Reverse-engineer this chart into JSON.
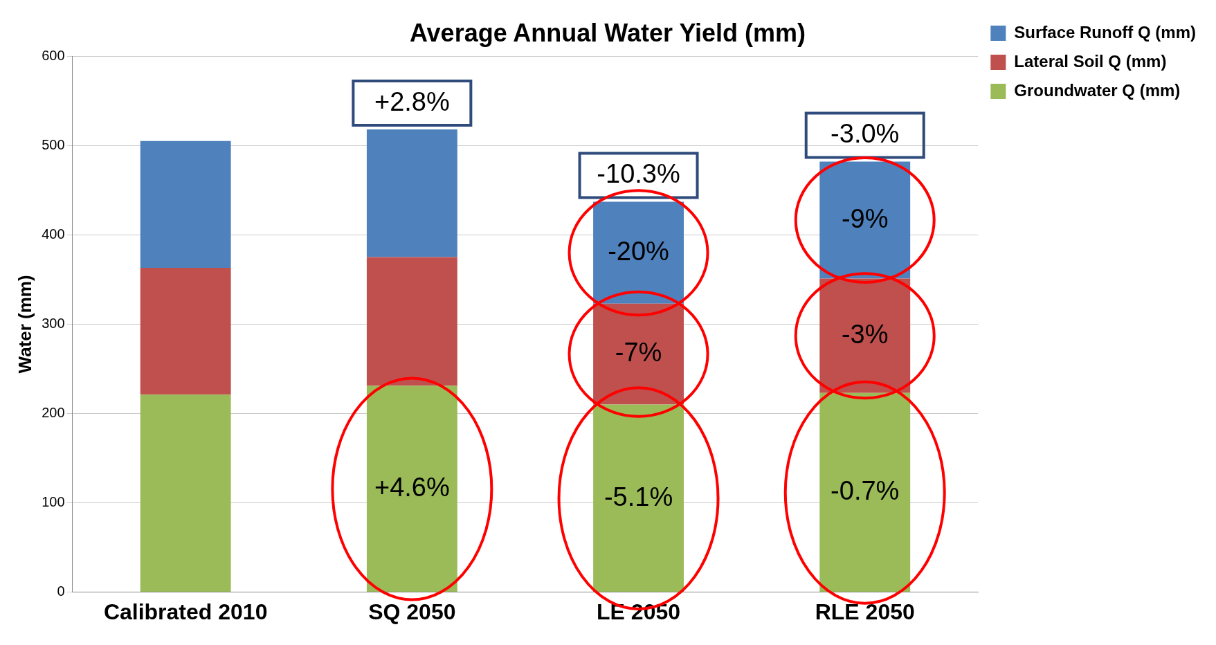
{
  "chart_data": {
    "type": "bar",
    "stacked": true,
    "title": "Average Annual Water Yield (mm)",
    "ylabel": "Water (mm)",
    "categories": [
      "Calibrated 2010",
      "SQ 2050",
      "LE 2050",
      "RLE 2050"
    ],
    "series": [
      {
        "name": "Groundwater Q (mm)",
        "color": "#9bbb59",
        "values": [
          221,
          231,
          210,
          223
        ]
      },
      {
        "name": "Lateral Soil Q (mm)",
        "color": "#c0504d",
        "values": [
          142,
          144,
          113,
          128
        ]
      },
      {
        "name": "Surface Runoff Q (mm)",
        "color": "#4f81bd",
        "values": [
          142,
          143,
          114,
          131
        ]
      }
    ],
    "ylim": [
      0,
      600
    ],
    "yticks": [
      0,
      100,
      200,
      300,
      400,
      500,
      600
    ],
    "grid": "y",
    "legend": "top right",
    "annotations": [
      "+2.8%",
      "-10.3%",
      "-3.0%",
      "-20%",
      "-9%",
      "-7%",
      "-3%",
      "+4.6%",
      "-5.1%",
      "-0.7%"
    ]
  }
}
